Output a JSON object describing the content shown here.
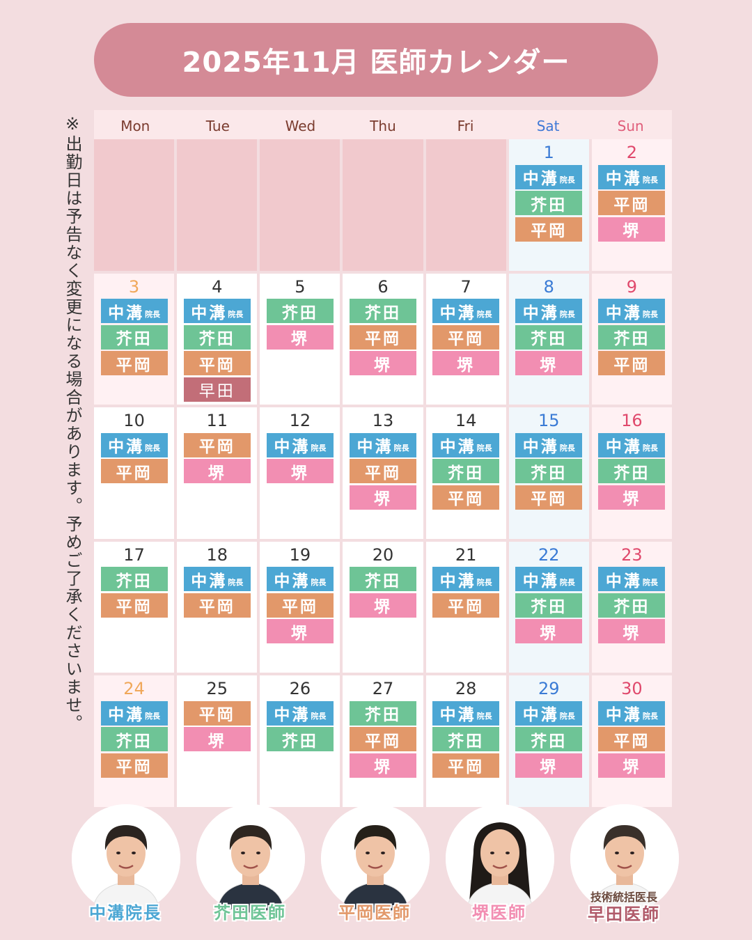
{
  "title": "2025年11月 医師カレンダー",
  "note": "※出勤日は予告なく変更になる場合があります。予めご了承くださいませ。",
  "days_of_week": [
    {
      "label": "Mon",
      "kind": "wd"
    },
    {
      "label": "Tue",
      "kind": "wd"
    },
    {
      "label": "Wed",
      "kind": "wd"
    },
    {
      "label": "Thu",
      "kind": "wd"
    },
    {
      "label": "Fri",
      "kind": "wd"
    },
    {
      "label": "Sat",
      "kind": "sat"
    },
    {
      "label": "Sun",
      "kind": "sun"
    }
  ],
  "doctor_tags": {
    "nakamizo": {
      "label": "中溝",
      "sub": "院長"
    },
    "akuta": {
      "label": "芥田",
      "sub": ""
    },
    "hiraoka": {
      "label": "平岡",
      "sub": ""
    },
    "sakai": {
      "label": "堺",
      "sub": ""
    },
    "hayata": {
      "label": "早田",
      "sub": ""
    }
  },
  "weeks": [
    [
      {
        "day": "",
        "kind": "empty",
        "docs": []
      },
      {
        "day": "",
        "kind": "empty",
        "docs": []
      },
      {
        "day": "",
        "kind": "empty",
        "docs": []
      },
      {
        "day": "",
        "kind": "empty",
        "docs": []
      },
      {
        "day": "",
        "kind": "empty",
        "docs": []
      },
      {
        "day": "1",
        "kind": "sat",
        "docs": [
          "nakamizo",
          "akuta",
          "hiraoka"
        ]
      },
      {
        "day": "2",
        "kind": "sun",
        "docs": [
          "nakamizo",
          "hiraoka",
          "sakai"
        ]
      }
    ],
    [
      {
        "day": "3",
        "kind": "hol",
        "docs": [
          "nakamizo",
          "akuta",
          "hiraoka"
        ]
      },
      {
        "day": "4",
        "kind": "wd",
        "docs": [
          "nakamizo",
          "akuta",
          "hiraoka",
          "hayata"
        ]
      },
      {
        "day": "5",
        "kind": "wd",
        "docs": [
          "akuta",
          "sakai"
        ]
      },
      {
        "day": "6",
        "kind": "wd",
        "docs": [
          "akuta",
          "hiraoka",
          "sakai"
        ]
      },
      {
        "day": "7",
        "kind": "wd",
        "docs": [
          "nakamizo",
          "hiraoka",
          "sakai"
        ]
      },
      {
        "day": "8",
        "kind": "sat",
        "docs": [
          "nakamizo",
          "akuta",
          "sakai"
        ]
      },
      {
        "day": "9",
        "kind": "sun",
        "docs": [
          "nakamizo",
          "akuta",
          "hiraoka"
        ]
      }
    ],
    [
      {
        "day": "10",
        "kind": "wd",
        "docs": [
          "nakamizo",
          "hiraoka"
        ]
      },
      {
        "day": "11",
        "kind": "wd",
        "docs": [
          "hiraoka",
          "sakai"
        ]
      },
      {
        "day": "12",
        "kind": "wd",
        "docs": [
          "nakamizo",
          "sakai"
        ]
      },
      {
        "day": "13",
        "kind": "wd",
        "docs": [
          "nakamizo",
          "hiraoka",
          "sakai"
        ]
      },
      {
        "day": "14",
        "kind": "wd",
        "docs": [
          "nakamizo",
          "akuta",
          "hiraoka"
        ]
      },
      {
        "day": "15",
        "kind": "sat",
        "docs": [
          "nakamizo",
          "akuta",
          "hiraoka"
        ]
      },
      {
        "day": "16",
        "kind": "sun",
        "docs": [
          "nakamizo",
          "akuta",
          "sakai"
        ]
      }
    ],
    [
      {
        "day": "17",
        "kind": "wd",
        "docs": [
          "akuta",
          "hiraoka"
        ]
      },
      {
        "day": "18",
        "kind": "wd",
        "docs": [
          "nakamizo",
          "hiraoka"
        ]
      },
      {
        "day": "19",
        "kind": "wd",
        "docs": [
          "nakamizo",
          "hiraoka",
          "sakai"
        ]
      },
      {
        "day": "20",
        "kind": "wd",
        "docs": [
          "akuta",
          "sakai"
        ]
      },
      {
        "day": "21",
        "kind": "wd",
        "docs": [
          "nakamizo",
          "hiraoka"
        ]
      },
      {
        "day": "22",
        "kind": "sat",
        "docs": [
          "nakamizo",
          "akuta",
          "sakai"
        ]
      },
      {
        "day": "23",
        "kind": "sun",
        "docs": [
          "nakamizo",
          "akuta",
          "sakai"
        ]
      }
    ],
    [
      {
        "day": "24",
        "kind": "hol",
        "docs": [
          "nakamizo",
          "akuta",
          "hiraoka"
        ]
      },
      {
        "day": "25",
        "kind": "wd",
        "docs": [
          "hiraoka",
          "sakai"
        ]
      },
      {
        "day": "26",
        "kind": "wd",
        "docs": [
          "nakamizo",
          "akuta"
        ]
      },
      {
        "day": "27",
        "kind": "wd",
        "docs": [
          "akuta",
          "hiraoka",
          "sakai"
        ]
      },
      {
        "day": "28",
        "kind": "wd",
        "docs": [
          "nakamizo",
          "akuta",
          "hiraoka"
        ]
      },
      {
        "day": "29",
        "kind": "sat",
        "docs": [
          "nakamizo",
          "akuta",
          "sakai"
        ]
      },
      {
        "day": "30",
        "kind": "sun",
        "docs": [
          "nakamizo",
          "hiraoka",
          "sakai"
        ]
      }
    ]
  ],
  "doctors": [
    {
      "id": "nakamizo",
      "role": "",
      "name": "中溝院長",
      "color": "#4ca7d4"
    },
    {
      "id": "akuta",
      "role": "",
      "name": "芥田医師",
      "color": "#6ec496"
    },
    {
      "id": "hiraoka",
      "role": "",
      "name": "平岡医師",
      "color": "#e2986a"
    },
    {
      "id": "sakai",
      "role": "",
      "name": "堺医師",
      "color": "#f28eb2"
    },
    {
      "id": "hayata",
      "role": "技術統括医長",
      "name": "早田医師",
      "color": "#b05a6a"
    }
  ]
}
